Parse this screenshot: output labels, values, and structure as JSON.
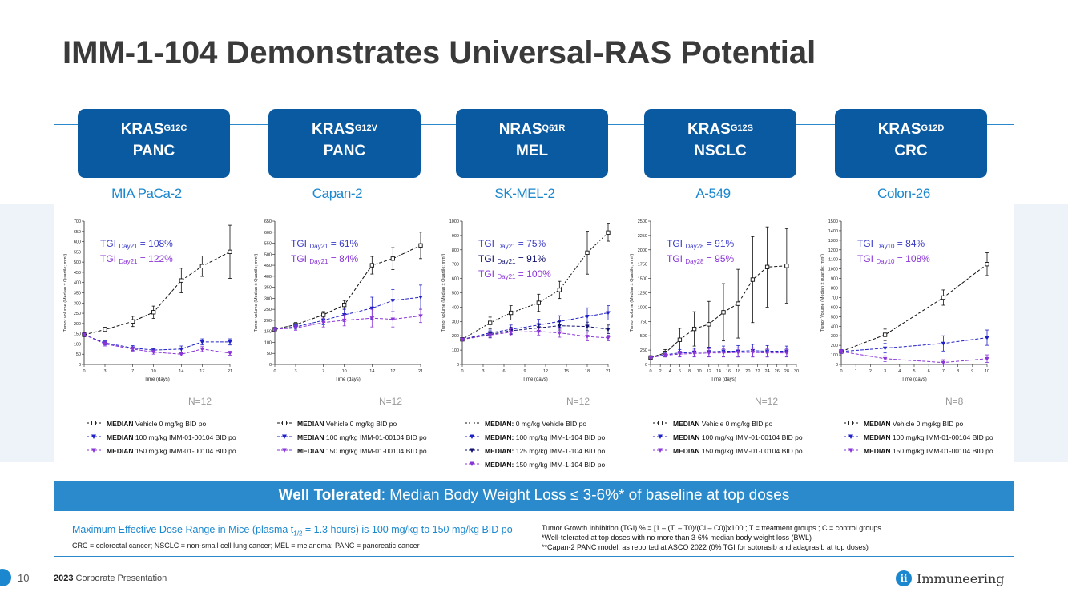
{
  "title": "IMM-1-104 Demonstrates Universal-RAS Potential",
  "colors": {
    "brand": "#0a5aa1",
    "accent": "#2b8acb",
    "vehicle": "#111111",
    "dose100": "#2020c8",
    "dose125": "#101070",
    "dose150": "#8a35d8",
    "tgi_a": "#3a3ac8",
    "tgi_b": "#8a35d8"
  },
  "banner": {
    "bold": "Well Tolerated",
    "rest": ": Median Body Weight Loss ≤ 3-6%* of baseline at top doses"
  },
  "footnotes": {
    "dose_pre": "Maximum Effective Dose Range in Mice (plasma t",
    "dose_sub": "1/2",
    "dose_post": " = 1.3 hours) is 100 mg/kg to 150 mg/kg BID po",
    "abbrev": "CRC = colorectal cancer; NSCLC = non-small cell lung cancer; MEL = melanoma; PANC = pancreatic cancer",
    "tgi_def": "Tumor Growth Inhibition (TGI) % = [1 – (Ti – T0)/(Ci – C0)]x100 ; T = treatment groups ; C = control groups",
    "star1": "*Well-tolerated at top doses with no more than 3-6% median body weight loss (BWL)",
    "star2": "**Capan-2 PANC model, as reported at ASCO 2022 (0% TGI for sotorasib and adagrasib at top doses)"
  },
  "footer": {
    "page": "10",
    "year": "2023",
    "label": "Corporate Presentation",
    "logo": "Immuneering",
    "logo_icon": "ii"
  },
  "chart_data": [
    {
      "type": "line",
      "gene": "KRAS",
      "mutation": "G12C",
      "cancer": "PANC",
      "cell_line": "MIA PaCa-2",
      "ylabel": "Tumor volume (Median ± Quartile; mm³)",
      "xlabel": "Time (days)",
      "xlim": [
        0,
        21
      ],
      "ylim": [
        0,
        700
      ],
      "xticks": [
        0,
        3,
        7,
        10,
        14,
        17,
        21
      ],
      "yticks": [
        0,
        50,
        100,
        150,
        200,
        250,
        300,
        350,
        400,
        450,
        500,
        550,
        600,
        650,
        700
      ],
      "tgi": [
        {
          "day": "Day21",
          "value": "108%"
        },
        {
          "day": "Day21",
          "value": "122%"
        }
      ],
      "n": "N=12",
      "series": [
        {
          "color": "#111111",
          "marker": "square",
          "x": [
            0,
            3,
            7,
            10,
            14,
            17,
            21
          ],
          "y": [
            145,
            170,
            210,
            255,
            410,
            480,
            550
          ],
          "err": [
            10,
            12,
            25,
            30,
            60,
            50,
            130
          ]
        },
        {
          "color": "#2020c8",
          "marker": "tri",
          "x": [
            0,
            3,
            7,
            10,
            14,
            17,
            21
          ],
          "y": [
            145,
            105,
            80,
            70,
            75,
            110,
            110
          ],
          "err": [
            8,
            10,
            12,
            10,
            15,
            15,
            15
          ]
        },
        {
          "color": "#8a35d8",
          "marker": "tri",
          "x": [
            0,
            3,
            7,
            10,
            14,
            17,
            21
          ],
          "y": [
            145,
            100,
            75,
            60,
            50,
            75,
            55
          ],
          "err": [
            8,
            10,
            10,
            10,
            8,
            12,
            10
          ]
        }
      ],
      "legend": [
        {
          "bold": "MEDIAN",
          "text": " Vehicle 0 mg/kg BID po"
        },
        {
          "bold": "MEDIAN",
          "text": " 100 mg/kg IMM-01-00104 BID po"
        },
        {
          "bold": "MEDIAN",
          "text": " 150 mg/kg IMM-01-00104 BID po"
        }
      ]
    },
    {
      "type": "line",
      "gene": "KRAS",
      "mutation": "G12V",
      "cancer": "PANC",
      "cell_line": "Capan-2",
      "ylabel": "Tumor volume (Median ± Quartile; mm³)",
      "xlabel": "Time (days)",
      "xlim": [
        0,
        21
      ],
      "ylim": [
        0,
        650
      ],
      "xticks": [
        0,
        3,
        7,
        10,
        14,
        17,
        21
      ],
      "yticks": [
        0,
        50,
        100,
        150,
        200,
        250,
        300,
        350,
        400,
        450,
        500,
        550,
        600,
        650
      ],
      "tgi": [
        {
          "day": "Day21",
          "value": "61%"
        },
        {
          "day": "Day21",
          "value": "84%"
        }
      ],
      "n": "N=12",
      "series": [
        {
          "color": "#111111",
          "marker": "square",
          "x": [
            0,
            3,
            7,
            10,
            14,
            17,
            21
          ],
          "y": [
            160,
            180,
            225,
            270,
            450,
            480,
            540
          ],
          "err": [
            8,
            10,
            15,
            20,
            40,
            50,
            60
          ]
        },
        {
          "color": "#2020c8",
          "marker": "tri",
          "x": [
            0,
            3,
            7,
            10,
            14,
            17,
            21
          ],
          "y": [
            160,
            170,
            200,
            225,
            255,
            290,
            305
          ],
          "err": [
            8,
            10,
            20,
            30,
            50,
            50,
            55
          ]
        },
        {
          "color": "#8a35d8",
          "marker": "tri",
          "x": [
            0,
            3,
            7,
            10,
            14,
            17,
            21
          ],
          "y": [
            160,
            165,
            190,
            200,
            210,
            205,
            220
          ],
          "err": [
            8,
            10,
            20,
            25,
            40,
            35,
            30
          ]
        }
      ],
      "legend": [
        {
          "bold": "MEDIAN",
          "text": " Vehicle 0 mg/kg BID po"
        },
        {
          "bold": "MEDIAN",
          "text": " 100 mg/kg IMM-01-00104 BID po"
        },
        {
          "bold": "MEDIAN",
          "text": " 150 mg/kg IMM-01-00104 BID po"
        }
      ]
    },
    {
      "type": "line",
      "gene": "NRAS",
      "mutation": "Q61R",
      "cancer": "MEL",
      "cell_line": "SK-MEL-2",
      "ylabel": "Tumor volume (Median ± Quartile; mm³)",
      "xlabel": "Time (days)",
      "xlim": [
        0,
        21
      ],
      "ylim": [
        0,
        1000
      ],
      "xticks": [
        0,
        3,
        6,
        9,
        12,
        15,
        18,
        21
      ],
      "yticks": [
        0,
        100,
        200,
        300,
        400,
        500,
        600,
        700,
        800,
        900,
        1000
      ],
      "tgi": [
        {
          "day": "Day21",
          "value": "75%"
        },
        {
          "day": "Day21",
          "value": "91%"
        },
        {
          "day": "Day21",
          "value": "100%"
        }
      ],
      "n": "N=12",
      "series": [
        {
          "color": "#111111",
          "marker": "square",
          "dash": "2,2",
          "x": [
            0,
            4,
            7,
            11,
            14,
            18,
            21
          ],
          "y": [
            175,
            290,
            360,
            430,
            520,
            780,
            920
          ],
          "err": [
            10,
            40,
            50,
            60,
            60,
            150,
            60
          ]
        },
        {
          "color": "#2020c8",
          "marker": "tri",
          "x": [
            0,
            4,
            7,
            11,
            14,
            18,
            21
          ],
          "y": [
            175,
            220,
            245,
            275,
            300,
            335,
            360
          ],
          "err": [
            10,
            20,
            30,
            40,
            40,
            60,
            50
          ]
        },
        {
          "color": "#101070",
          "marker": "tri",
          "x": [
            0,
            4,
            7,
            11,
            14,
            18,
            21
          ],
          "y": [
            175,
            210,
            235,
            255,
            270,
            265,
            245
          ],
          "err": [
            10,
            20,
            25,
            30,
            30,
            30,
            30
          ]
        },
        {
          "color": "#8a35d8",
          "marker": "tri",
          "x": [
            0,
            4,
            7,
            11,
            14,
            18,
            21
          ],
          "y": [
            175,
            205,
            225,
            230,
            220,
            195,
            185
          ],
          "err": [
            10,
            20,
            25,
            25,
            30,
            30,
            20
          ]
        }
      ],
      "legend": [
        {
          "bold": "MEDIAN:",
          "text": " 0 mg/kg Vehicle BID po"
        },
        {
          "bold": "MEDIAN:",
          "text": " 100 mg/kg IMM-1-104 BID po"
        },
        {
          "bold": "MEDIAN:",
          "text": " 125 mg/kg IMM-1-104 BID po"
        },
        {
          "bold": "MEDIAN:",
          "text": " 150 mg/kg IMM-1-104 BID po"
        }
      ]
    },
    {
      "type": "line",
      "gene": "KRAS",
      "mutation": "G12S",
      "cancer": "NSCLC",
      "cell_line": "A-549",
      "ylabel": "Tumor volume (Median ± Quartile; mm³)",
      "xlabel": "Time (days)",
      "xlim": [
        0,
        30
      ],
      "ylim": [
        0,
        2500
      ],
      "xticks": [
        0,
        2,
        4,
        6,
        8,
        10,
        12,
        14,
        16,
        18,
        20,
        22,
        24,
        26,
        28,
        30
      ],
      "yticks": [
        0,
        250,
        500,
        750,
        1000,
        1250,
        1500,
        1750,
        2000,
        2250,
        2500
      ],
      "tgi": [
        {
          "day": "Day28",
          "value": "91%"
        },
        {
          "day": "Day28",
          "value": "95%"
        }
      ],
      "n": "N=12",
      "series": [
        {
          "color": "#111111",
          "marker": "square",
          "x": [
            0,
            3,
            6,
            9,
            12,
            15,
            18,
            21,
            24,
            28
          ],
          "y": [
            120,
            200,
            430,
            620,
            700,
            910,
            1060,
            1480,
            1700,
            1720
          ],
          "err": [
            30,
            60,
            200,
            300,
            400,
            500,
            600,
            750,
            700,
            650
          ]
        },
        {
          "color": "#2020c8",
          "marker": "tri",
          "x": [
            0,
            3,
            6,
            9,
            12,
            15,
            18,
            21,
            24,
            28
          ],
          "y": [
            120,
            170,
            200,
            210,
            220,
            230,
            230,
            240,
            230,
            230
          ],
          "err": [
            20,
            40,
            60,
            70,
            80,
            90,
            100,
            110,
            100,
            90
          ]
        },
        {
          "color": "#8a35d8",
          "marker": "tri",
          "x": [
            0,
            3,
            6,
            9,
            12,
            15,
            18,
            21,
            24,
            28
          ],
          "y": [
            120,
            160,
            180,
            190,
            200,
            200,
            210,
            210,
            200,
            200
          ],
          "err": [
            20,
            30,
            50,
            60,
            70,
            70,
            80,
            80,
            70,
            70
          ]
        }
      ],
      "legend": [
        {
          "bold": "MEDIAN",
          "text": " Vehicle 0 mg/kg BID po"
        },
        {
          "bold": "MEDIAN",
          "text": " 100 mg/kg IMM-01-00104 BID po"
        },
        {
          "bold": "MEDIAN",
          "text": " 150 mg/kg IMM-01-00104 BID po"
        }
      ]
    },
    {
      "type": "line",
      "gene": "KRAS",
      "mutation": "G12D",
      "cancer": "CRC",
      "cell_line": "Colon-26",
      "ylabel": "Tumor Volume (Median ± quartile; mm³)",
      "xlabel": "Time (days)",
      "xlim": [
        0,
        10
      ],
      "ylim": [
        0,
        1500
      ],
      "xticks": [
        0,
        1,
        2,
        3,
        4,
        5,
        6,
        7,
        8,
        9,
        10
      ],
      "yticks": [
        0,
        100,
        200,
        300,
        400,
        500,
        600,
        700,
        800,
        900,
        1000,
        1100,
        1200,
        1300,
        1400,
        1500
      ],
      "tgi": [
        {
          "day": "Day10",
          "value": "84%"
        },
        {
          "day": "Day10",
          "value": "108%"
        }
      ],
      "n": "N=8",
      "series": [
        {
          "color": "#111111",
          "marker": "square",
          "x": [
            0,
            3,
            7,
            10
          ],
          "y": [
            135,
            310,
            700,
            1050
          ],
          "err": [
            20,
            60,
            80,
            120
          ]
        },
        {
          "color": "#2020c8",
          "marker": "tri",
          "x": [
            0,
            3,
            7,
            10
          ],
          "y": [
            135,
            170,
            220,
            280
          ],
          "err": [
            20,
            50,
            80,
            80
          ]
        },
        {
          "color": "#8a35d8",
          "marker": "tri",
          "x": [
            0,
            3,
            7,
            10
          ],
          "y": [
            135,
            60,
            20,
            60
          ],
          "err": [
            20,
            30,
            30,
            40
          ]
        }
      ],
      "legend": [
        {
          "bold": "MEDIAN",
          "text": " Vehicle 0 mg/kg BID po"
        },
        {
          "bold": "MEDIAN",
          "text": " 100 mg/kg IMM-01-00104 BID po"
        },
        {
          "bold": "MEDIAN",
          "text": " 150 mg/kg IMM-01-00104 BID po"
        }
      ]
    }
  ]
}
